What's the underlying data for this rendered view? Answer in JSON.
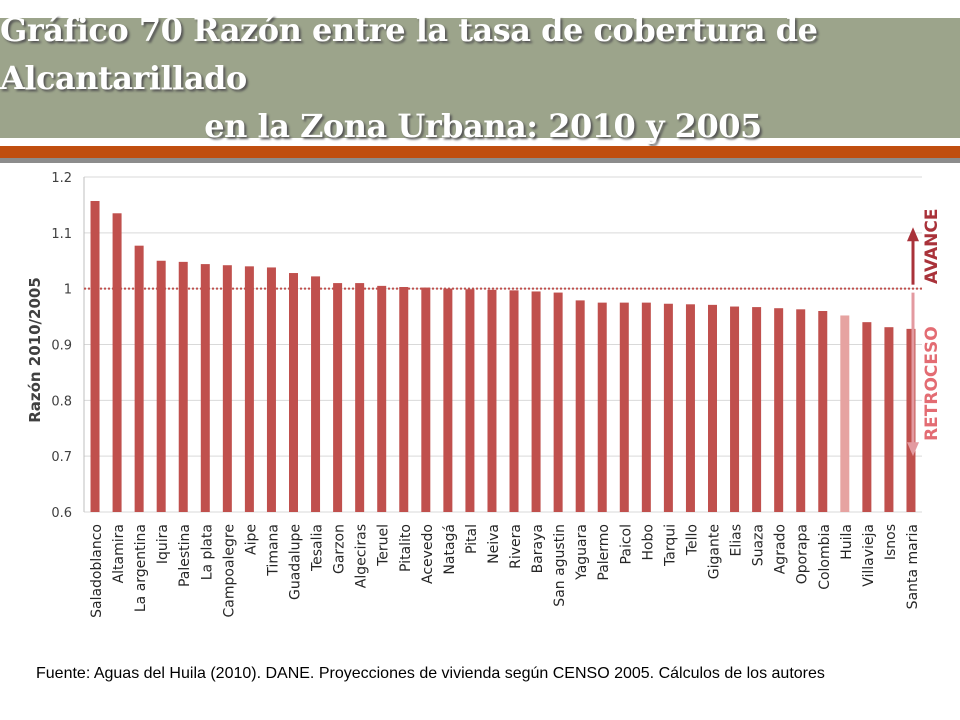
{
  "title": {
    "line1": "Gráfico 70 Razón entre la tasa de cobertura de Alcantarillado",
    "line2": "en la Zona Urbana: 2010  y 2005"
  },
  "footer": {
    "source": "Fuente: Aguas del Huila (2010). DANE. Proyecciones de vivienda según  CENSO 2005. Cálculos de los autores"
  },
  "colors": {
    "bar": "#c0504d",
    "bar_highlight": "#e6a3a1",
    "title_band": "#9ca48b",
    "accent_rule": "#c04e0f",
    "advance_arrow": "#a9323a",
    "retreat_arrow": "#e39aa0"
  },
  "chart_data": {
    "type": "bar",
    "title": "",
    "xlabel": "",
    "ylabel": "Razón 2010/2005",
    "ylim": [
      0.6,
      1.2
    ],
    "yticks": [
      "0.6",
      "0.7",
      "0.8",
      "0.9",
      "1",
      "1.1",
      "1.2"
    ],
    "reference_line": 1,
    "categories": [
      "Saladoblanco",
      "Altamira",
      "La argentina",
      "Iquira",
      "Palestina",
      "La plata",
      "Campoalegre",
      "Aipe",
      "Timana",
      "Guadalupe",
      "Tesalia",
      "Garzon",
      "Algeciras",
      "Teruel",
      "Pitalito",
      "Acevedo",
      "Natagá",
      "Pital",
      "Neiva",
      "Rivera",
      "Baraya",
      "San agustin",
      "Yaguara",
      "Palermo",
      "Paicol",
      "Hobo",
      "Tarqui",
      "Tello",
      "Gigante",
      "Elias",
      "Suaza",
      "Agrado",
      "Oporapa",
      "Colombia",
      "Huila",
      "Villavieja",
      "Isnos",
      "Santa maria"
    ],
    "values": [
      1.157,
      1.135,
      1.077,
      1.05,
      1.048,
      1.044,
      1.042,
      1.04,
      1.038,
      1.028,
      1.022,
      1.01,
      1.01,
      1.005,
      1.003,
      1.002,
      1.0,
      0.999,
      0.998,
      0.997,
      0.995,
      0.993,
      0.979,
      0.975,
      0.975,
      0.975,
      0.973,
      0.972,
      0.971,
      0.968,
      0.967,
      0.965,
      0.963,
      0.96,
      0.952,
      0.94,
      0.931,
      0.928
    ],
    "highlight": [
      "Huila"
    ],
    "annotations": [
      "AVANCE",
      "RETROCESO"
    ]
  }
}
